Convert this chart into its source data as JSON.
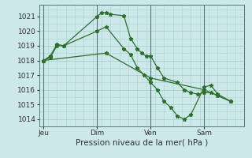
{
  "bg_color": "#cce8e8",
  "grid_color": "#aacfcf",
  "line_color": "#2d6e2d",
  "marker_color": "#2d6e2d",
  "xlabel": "Pression niveau de la mer( hPa )",
  "ylim": [
    1013.5,
    1021.8
  ],
  "yticks": [
    1014,
    1015,
    1016,
    1017,
    1018,
    1019,
    1020,
    1021
  ],
  "xtick_labels": [
    "Jeu",
    "Dim",
    "Ven",
    "Sam"
  ],
  "xtick_positions": [
    0,
    24,
    48,
    72
  ],
  "xlim": [
    -2,
    90
  ],
  "vline_positions": [
    0,
    24,
    48,
    72
  ],
  "series1_x": [
    0,
    3,
    6,
    9,
    24,
    26,
    28,
    30,
    36,
    39,
    42,
    44,
    46,
    48,
    51,
    54,
    60,
    63,
    66,
    69,
    72,
    75,
    78,
    84
  ],
  "series1_y": [
    1018.0,
    1018.2,
    1019.0,
    1019.0,
    1021.0,
    1021.25,
    1021.25,
    1021.15,
    1021.05,
    1019.5,
    1018.8,
    1018.5,
    1018.3,
    1018.3,
    1017.5,
    1016.8,
    1016.5,
    1016.0,
    1015.8,
    1015.7,
    1015.8,
    1015.8,
    1015.6,
    1015.2
  ],
  "series2_x": [
    0,
    3,
    6,
    9,
    24,
    28,
    36,
    39,
    42,
    45,
    48,
    51,
    54,
    57,
    60,
    63,
    66,
    72,
    75,
    78,
    84
  ],
  "series2_y": [
    1018.0,
    1018.3,
    1019.1,
    1019.0,
    1020.0,
    1020.3,
    1018.8,
    1018.4,
    1017.5,
    1017.0,
    1016.5,
    1016.0,
    1015.2,
    1014.8,
    1014.2,
    1014.0,
    1014.3,
    1016.2,
    1016.3,
    1015.7,
    1015.2
  ],
  "series3_x": [
    0,
    28,
    48,
    72,
    84
  ],
  "series3_y": [
    1018.0,
    1018.5,
    1016.8,
    1016.0,
    1015.2
  ],
  "tick_fontsize": 6.5,
  "xlabel_fontsize": 7.5
}
